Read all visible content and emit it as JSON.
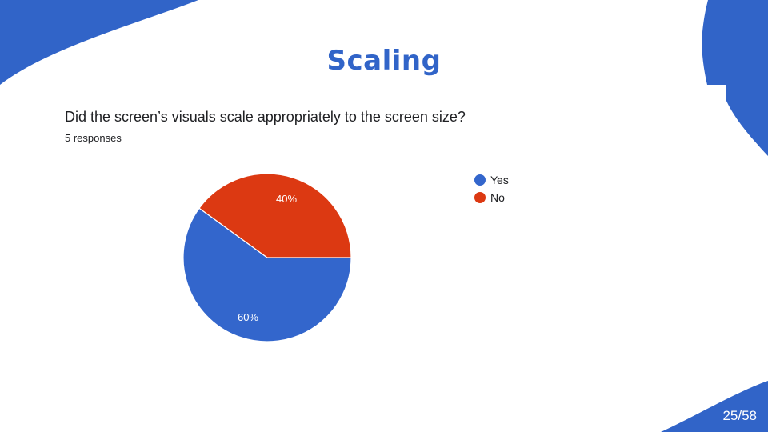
{
  "slide": {
    "title": "Scaling",
    "page_number": "25/58"
  },
  "colors": {
    "accent": "#3164c8",
    "yes": "#3366cc",
    "no": "#dc3912",
    "text": "#202124"
  },
  "question": {
    "text": "Did the screen’s visuals scale appropriately to the screen size?",
    "responses": "5 responses"
  },
  "chart_data": {
    "type": "pie",
    "title": "",
    "slices": [
      {
        "label": "Yes",
        "value": 60,
        "display": "60%",
        "color": "#3366cc"
      },
      {
        "label": "No",
        "value": 40,
        "display": "40%",
        "color": "#dc3912"
      }
    ],
    "legend_position": "right",
    "legend": [
      "Yes",
      "No"
    ]
  }
}
